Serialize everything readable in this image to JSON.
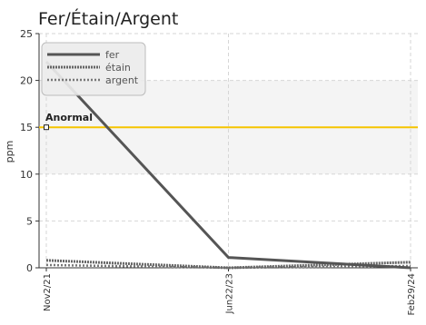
{
  "chart_data": {
    "type": "line",
    "title": "Fer/Étain/Argent",
    "xlabel": "",
    "ylabel": "ppm",
    "x": [
      "Nov2/21",
      "Jun22/23",
      "Feb29/24"
    ],
    "ylim": [
      0,
      25
    ],
    "yticks": [
      0,
      5,
      10,
      15,
      20,
      25
    ],
    "grid": true,
    "legend_position": "top-left",
    "series": [
      {
        "name": "fer",
        "values": [
          22,
          1.1,
          0
        ],
        "color": "#555555",
        "style": "solid"
      },
      {
        "name": "étain",
        "values": [
          0.8,
          0,
          0.6
        ],
        "color": "#666666",
        "style": "dense-dashed"
      },
      {
        "name": "argent",
        "values": [
          0.3,
          0,
          0.2
        ],
        "color": "#777777",
        "style": "dashed"
      }
    ],
    "threshold": {
      "label": "Anormal",
      "value": 15,
      "color": "#f5c400"
    },
    "band": {
      "from": 10,
      "to": 20,
      "color": "#f4f4f4"
    }
  }
}
